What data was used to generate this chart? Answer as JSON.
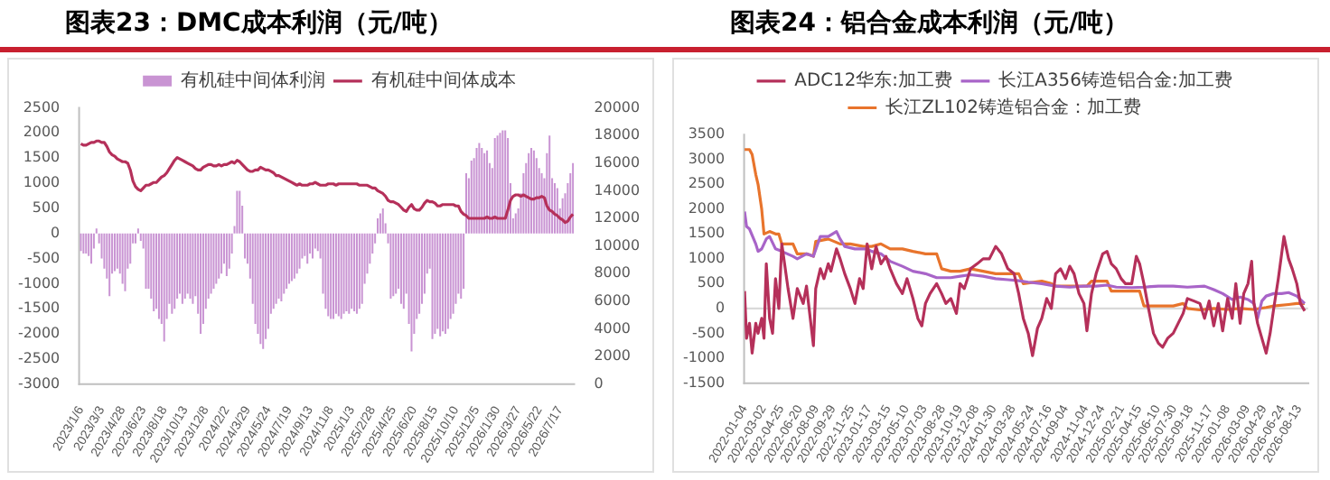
{
  "chart_data": [
    {
      "type": "bar",
      "title": "图表23：DMC成本利润（元/吨）",
      "categories": [
        "2023/1/6",
        null,
        null,
        null,
        null,
        null,
        null,
        null,
        "2023/3/3",
        null,
        null,
        null,
        null,
        null,
        null,
        null,
        "2023/4/28",
        null,
        null,
        null,
        null,
        null,
        null,
        null,
        "2023/6/23",
        null,
        null,
        null,
        null,
        null,
        null,
        null,
        "2023/8/18",
        null,
        null,
        null,
        null,
        null,
        null,
        null,
        "2023/10/13",
        null,
        null,
        null,
        null,
        null,
        null,
        null,
        "2023/12/8",
        null,
        null,
        null,
        null,
        null,
        null,
        null,
        "2024/2/2",
        null,
        null,
        null,
        null,
        null,
        null,
        null,
        "2024/3/29",
        null,
        null,
        null,
        null,
        null,
        null,
        null,
        "2024/5/24",
        null,
        null,
        null,
        null,
        null,
        null,
        null,
        "2024/7/19",
        null,
        null,
        null,
        null,
        null,
        null,
        null,
        "2024/9/13",
        null,
        null,
        null,
        null,
        null,
        null,
        null,
        "2024/11/8",
        null,
        null,
        null,
        null,
        null,
        null,
        null,
        "2025/1/3",
        null,
        null,
        null,
        null,
        null,
        null,
        null,
        "2025/2/28",
        null,
        null,
        null,
        null,
        null,
        null,
        null,
        "2025/4/25",
        null,
        null,
        null,
        null,
        null,
        null,
        null,
        "2025/6/20",
        null,
        null,
        null,
        null,
        null,
        null,
        null,
        "2025/8/15",
        null,
        null,
        null,
        null,
        null,
        null,
        null,
        "2025/10/10",
        null,
        null,
        null,
        null,
        null,
        null,
        null,
        "2025/12/5",
        null,
        null,
        null,
        null,
        null,
        null,
        null,
        "2026/1/30",
        null,
        null,
        null,
        null,
        null,
        null,
        null,
        "2026/3/27",
        null,
        null,
        null,
        null,
        null,
        null,
        null,
        "2026/5/22",
        null,
        null,
        null,
        null,
        null,
        null,
        null,
        "2026/7/17",
        null,
        null,
        null,
        null,
        null
      ],
      "ylim": [
        -3000,
        2500
      ],
      "yticks": [
        -3000,
        -2500,
        -2000,
        -1500,
        -1000,
        -500,
        0,
        500,
        1000,
        1500,
        2000,
        2500
      ],
      "y2lim": [
        0,
        20000
      ],
      "y2ticks": [
        0,
        2000,
        4000,
        6000,
        8000,
        10000,
        12000,
        14000,
        16000,
        18000,
        20000
      ],
      "legend": "top",
      "marker": "none",
      "series": [
        {
          "name": "有机硅中间体利润",
          "type": "bar",
          "color": "#c994d3",
          "values": [
            -350,
            -400,
            -400,
            -450,
            -600,
            -300,
            100,
            -200,
            -500,
            -700,
            -900,
            -1250,
            -800,
            -750,
            -700,
            -800,
            -1000,
            -1150,
            -700,
            -600,
            -200,
            -200,
            100,
            -150,
            -300,
            -1100,
            -1100,
            -1300,
            -1550,
            -1500,
            -1700,
            -1800,
            -2150,
            -1700,
            -1400,
            -1600,
            -1500,
            -1300,
            -1200,
            -1400,
            -1300,
            -1200,
            -1300,
            -1400,
            -1250,
            -1600,
            -2000,
            -1800,
            -1500,
            -1300,
            -1200,
            -1100,
            -1000,
            -900,
            -800,
            -600,
            -850,
            -700,
            -400,
            150,
            850,
            850,
            550,
            -500,
            -600,
            -900,
            -1400,
            -1800,
            -2000,
            -2200,
            -2300,
            -2100,
            -1900,
            -1600,
            -1500,
            -1400,
            -1300,
            -1350,
            -1200,
            -1100,
            -1000,
            -950,
            -900,
            -800,
            -700,
            -500,
            -450,
            -600,
            -400,
            -500,
            -300,
            -350,
            -500,
            -1200,
            -1500,
            -1650,
            -1700,
            -1700,
            -1600,
            -1650,
            -1700,
            -1600,
            -1550,
            -1600,
            -1500,
            -1550,
            -1600,
            -1500,
            -1400,
            -1000,
            -800,
            -600,
            -400,
            -200,
            300,
            400,
            500,
            200,
            -200,
            -1300,
            -1250,
            -1200,
            -1100,
            -1400,
            -1500,
            -1200,
            -1800,
            -2350,
            -2000,
            -1700,
            -1600,
            -1400,
            -1200,
            -800,
            -700,
            -2100,
            -2000,
            -1900,
            -2050,
            -1950,
            -2000,
            -1900,
            -1700,
            -1600,
            -1400,
            -1200,
            -1300,
            -1100,
            1200,
            1100,
            1450,
            1500,
            1700,
            1800,
            1700,
            1600,
            1650,
            1400,
            1300,
            1900,
            1950,
            2000,
            2050,
            2050,
            1900,
            1000,
            300,
            400,
            500,
            800,
            1200,
            1400,
            1600,
            1700,
            1650,
            1500,
            1300,
            1200,
            1100,
            1600,
            1950,
            1100,
            1000,
            900,
            500,
            700,
            800,
            1000,
            1200,
            1400
          ]
        },
        {
          "name": "有机硅中间体成本",
          "type": "line",
          "axis": "y2",
          "color": "#b5305a",
          "values": [
            17400,
            17300,
            17300,
            17400,
            17500,
            17500,
            17600,
            17600,
            17500,
            17500,
            17200,
            16800,
            16600,
            16500,
            16300,
            16200,
            16100,
            16100,
            16000,
            15500,
            14700,
            14300,
            14100,
            14000,
            14200,
            14400,
            14400,
            14500,
            14600,
            14600,
            14800,
            15000,
            15100,
            15300,
            15600,
            15900,
            16200,
            16400,
            16300,
            16200,
            16100,
            16000,
            15900,
            15800,
            15600,
            15500,
            15500,
            15700,
            15800,
            15900,
            15900,
            15800,
            15800,
            15900,
            15800,
            15900,
            15900,
            16000,
            16100,
            16000,
            16200,
            16100,
            15900,
            15700,
            15500,
            15400,
            15400,
            15500,
            15500,
            15700,
            15600,
            15500,
            15500,
            15400,
            15300,
            15100,
            15100,
            15000,
            14900,
            14800,
            14700,
            14600,
            14500,
            14400,
            14500,
            14400,
            14400,
            14400,
            14500,
            14500,
            14600,
            14500,
            14400,
            14400,
            14400,
            14500,
            14500,
            14500,
            14400,
            14500,
            14500,
            14500,
            14500,
            14500,
            14500,
            14500,
            14500,
            14400,
            14400,
            14400,
            14400,
            14300,
            14200,
            14200,
            14000,
            13900,
            13800,
            13600,
            13300,
            13200,
            13200,
            13100,
            13000,
            12800,
            12600,
            12500,
            12800,
            13000,
            12700,
            12600,
            12600,
            12800,
            13100,
            13300,
            13200,
            13200,
            13100,
            12900,
            12900,
            13000,
            13000,
            13000,
            13000,
            13000,
            12900,
            12900,
            12500,
            12300,
            12200,
            12000,
            12000,
            12000,
            12000,
            12000,
            12000,
            12000,
            12100,
            12000,
            12000,
            12100,
            12000,
            12000,
            12000,
            12000,
            12600,
            13300,
            13600,
            13700,
            13700,
            13600,
            13700,
            13600,
            13500,
            13400,
            13400,
            13500,
            13500,
            13600,
            13500,
            12900,
            12600,
            12500,
            12300,
            12200,
            12000,
            11900,
            11700,
            11800,
            12100,
            12300
          ]
        }
      ]
    },
    {
      "type": "line",
      "title": "图表24：铝合金成本利润（元/吨）",
      "xlim": [
        "2022-01-04",
        "2026-09-10"
      ],
      "xticks": [
        "2022-01-04",
        "2022-03-02",
        "2022-04-25",
        "2022-06-20",
        "2022-08-09",
        "2022-09-29",
        "2022-11-25",
        "2023-01-17",
        "2023-03-15",
        "2023-05-10",
        "2023-07-03",
        "2023-08-28",
        "2023-10-19",
        "2023-12-08",
        "2024-01-30",
        "2024-03-28",
        "2024-05-24",
        "2024-07-16",
        "2024-09-04",
        "2024-11-04",
        "2024-12-24",
        "2025-02-21",
        "2025-04-15",
        "2025-06-10",
        "2025-07-30",
        "2025-09-18",
        "2025-11-17",
        "2026-01-08",
        "2026-03-09",
        "2026-04-29",
        "2026-06-24",
        "2026-08-13"
      ],
      "ylim": [
        -1500,
        3500
      ],
      "yticks": [
        -1500,
        -1000,
        -500,
        0,
        500,
        1000,
        1500,
        2000,
        2500,
        3000,
        3500
      ],
      "legend": "top",
      "marker": "none",
      "ref_lines": [
        {
          "axis": "y",
          "value": 0,
          "color": "#d9d9d9"
        }
      ],
      "series": [
        {
          "name": "ADC12华东:加工费",
          "color": "#b5305a",
          "x": [
            "2022-01-04",
            "2022-01-10",
            "2022-01-19",
            "2022-01-27",
            "2022-02-07",
            "2022-02-14",
            "2022-02-25",
            "2022-03-04",
            "2022-03-11",
            "2022-03-21",
            "2022-03-30",
            "2022-04-08",
            "2022-04-18",
            "2022-04-27",
            "2022-05-16",
            "2022-05-31",
            "2022-06-13",
            "2022-07-01",
            "2022-07-11",
            "2022-08-01",
            "2022-08-08",
            "2022-08-22",
            "2022-09-02",
            "2022-09-15",
            "2022-09-23",
            "2022-10-10",
            "2022-10-21",
            "2022-11-04",
            "2022-11-21",
            "2022-12-05",
            "2022-12-19",
            "2022-12-30",
            "2023-01-11",
            "2023-01-25",
            "2023-02-07",
            "2023-02-22",
            "2023-03-09",
            "2023-03-22",
            "2023-04-10",
            "2023-04-28",
            "2023-05-12",
            "2023-05-30",
            "2023-06-14",
            "2023-06-26",
            "2023-07-07",
            "2023-07-21",
            "2023-08-10",
            "2023-08-25",
            "2023-09-07",
            "2023-09-22",
            "2023-10-09",
            "2023-10-20",
            "2023-11-02",
            "2023-11-21",
            "2023-12-11",
            "2023-12-29",
            "2024-01-17",
            "2024-02-05",
            "2024-02-23",
            "2024-03-13",
            "2024-04-01",
            "2024-04-15",
            "2024-04-29",
            "2024-05-14",
            "2024-05-27",
            "2024-06-11",
            "2024-06-24",
            "2024-07-09",
            "2024-07-23",
            "2024-08-05",
            "2024-08-20",
            "2024-09-04",
            "2024-09-17",
            "2024-09-30",
            "2024-10-15",
            "2024-10-30",
            "2024-11-08",
            "2024-11-22",
            "2024-12-06",
            "2024-12-26",
            "2025-01-08",
            "2025-01-21",
            "2025-02-05",
            "2025-02-20",
            "2025-03-05",
            "2025-03-24",
            "2025-04-07",
            "2025-04-17",
            "2025-04-30",
            "2025-05-14",
            "2025-05-29",
            "2025-06-13",
            "2025-06-26",
            "2025-07-11",
            "2025-07-28",
            "2025-08-12",
            "2025-08-27",
            "2025-09-09",
            "2025-09-29",
            "2025-10-17",
            "2025-10-31",
            "2025-11-14",
            "2025-11-28",
            "2025-12-12",
            "2025-12-25",
            "2026-01-09",
            "2026-01-23",
            "2026-02-03",
            "2026-02-16",
            "2026-02-27",
            "2026-03-12",
            "2026-03-23",
            "2026-03-30",
            "2026-04-10",
            "2026-04-23",
            "2026-05-06",
            "2026-05-18",
            "2026-05-29",
            "2026-06-12",
            "2026-06-22",
            "2026-06-29",
            "2026-07-13",
            "2026-07-24",
            "2026-08-07",
            "2026-08-18",
            "2026-08-31"
          ],
          "values": [
            350,
            -600,
            -300,
            -900,
            -300,
            -500,
            -200,
            -600,
            900,
            -200,
            -500,
            600,
            0,
            1300,
            400,
            -200,
            400,
            100,
            450,
            -750,
            400,
            800,
            600,
            900,
            750,
            1200,
            1000,
            700,
            400,
            100,
            600,
            400,
            1300,
            800,
            1250,
            900,
            1050,
            800,
            500,
            300,
            600,
            200,
            -200,
            -350,
            100,
            300,
            500,
            300,
            100,
            200,
            -100,
            500,
            400,
            800,
            900,
            1000,
            1000,
            1250,
            1100,
            800,
            700,
            300,
            -200,
            -500,
            -950,
            -400,
            -200,
            200,
            0,
            700,
            800,
            600,
            850,
            700,
            300,
            100,
            -450,
            300,
            700,
            1100,
            1150,
            900,
            800,
            600,
            500,
            500,
            1050,
            900,
            500,
            0,
            -500,
            -700,
            -780,
            -600,
            -500,
            -300,
            -100,
            200,
            150,
            100,
            -200,
            150,
            -350,
            100,
            -450,
            200,
            -200,
            500,
            -300,
            300,
            500,
            950,
            100,
            -300,
            -600,
            -900,
            -500,
            0,
            600,
            1100,
            1450,
            1000,
            800,
            500,
            100,
            -50
          ]
        },
        {
          "name": "长江A356铸造铝合金:加工费",
          "color": "#a864c8",
          "x": [
            "2022-01-04",
            "2022-01-10",
            "2022-01-19",
            "2022-02-07",
            "2022-02-14",
            "2022-02-25",
            "2022-03-11",
            "2022-03-21",
            "2022-04-08",
            "2022-04-27",
            "2022-05-31",
            "2022-06-13",
            "2022-07-11",
            "2022-08-01",
            "2022-08-22",
            "2022-09-15",
            "2022-10-10",
            "2022-10-21",
            "2022-11-04",
            "2022-12-05",
            "2023-01-11",
            "2023-01-25",
            "2023-02-22",
            "2023-03-22",
            "2023-04-28",
            "2023-05-30",
            "2023-07-07",
            "2023-08-10",
            "2023-09-22",
            "2023-10-20",
            "2023-11-21",
            "2023-12-29",
            "2024-02-05",
            "2024-03-13",
            "2024-04-15",
            "2024-05-14",
            "2024-06-24",
            "2024-08-05",
            "2024-09-17",
            "2024-10-30",
            "2024-12-06",
            "2025-01-08",
            "2025-02-05",
            "2025-03-24",
            "2025-04-30",
            "2025-06-13",
            "2025-07-28",
            "2025-09-09",
            "2025-10-31",
            "2025-11-28",
            "2025-12-25",
            "2026-01-23",
            "2026-02-16",
            "2026-03-12",
            "2026-03-30",
            "2026-04-10",
            "2026-04-23",
            "2026-05-06",
            "2026-05-29",
            "2026-06-22",
            "2026-07-13",
            "2026-08-07",
            "2026-08-31"
          ],
          "values": [
            1950,
            1650,
            1600,
            1300,
            1150,
            1200,
            1400,
            1450,
            1200,
            1150,
            1050,
            1000,
            1100,
            1050,
            1450,
            1450,
            1550,
            1400,
            1250,
            1200,
            1200,
            1150,
            1100,
            950,
            850,
            750,
            700,
            620,
            620,
            650,
            680,
            650,
            600,
            580,
            560,
            530,
            500,
            450,
            430,
            450,
            450,
            470,
            430,
            420,
            430,
            450,
            450,
            430,
            450,
            380,
            300,
            180,
            230,
            180,
            100,
            -200,
            150,
            250,
            300,
            300,
            320,
            250,
            100
          ]
        },
        {
          "name": "长江ZL102铸造铝合金：加工费",
          "color": "#e8742c",
          "x": [
            "2022-01-04",
            "2022-01-19",
            "2022-01-27",
            "2022-02-07",
            "2022-02-14",
            "2022-02-25",
            "2022-03-04",
            "2022-03-21",
            "2022-04-08",
            "2022-04-18",
            "2022-04-27",
            "2022-05-31",
            "2022-06-13",
            "2022-07-11",
            "2022-08-01",
            "2022-08-08",
            "2022-09-15",
            "2022-10-21",
            "2022-11-21",
            "2022-12-30",
            "2023-01-25",
            "2023-02-22",
            "2023-03-22",
            "2023-04-28",
            "2023-05-30",
            "2023-07-07",
            "2023-08-10",
            "2023-08-25",
            "2023-09-22",
            "2023-10-20",
            "2023-11-21",
            "2023-12-29",
            "2024-02-05",
            "2024-04-15",
            "2024-04-29",
            "2024-06-24",
            "2024-07-23",
            "2024-08-05",
            "2024-09-17",
            "2024-11-08",
            "2024-11-22",
            "2025-01-08",
            "2025-01-21",
            "2025-03-05",
            "2025-04-17",
            "2025-04-30",
            "2025-06-13",
            "2025-07-28",
            "2025-08-27",
            "2025-09-09",
            "2025-10-17",
            "2025-11-28",
            "2026-01-09",
            "2026-02-16",
            "2026-03-30",
            "2026-05-06",
            "2026-05-29",
            "2026-07-13",
            "2026-08-07",
            "2026-08-31"
          ],
          "values": [
            3200,
            3200,
            3100,
            2700,
            2500,
            2000,
            1500,
            1550,
            1500,
            1500,
            1300,
            1300,
            1100,
            1100,
            1050,
            1350,
            1400,
            1300,
            1300,
            1250,
            1250,
            1300,
            1200,
            1200,
            1150,
            1100,
            1100,
            800,
            750,
            750,
            800,
            750,
            700,
            700,
            500,
            550,
            500,
            450,
            450,
            450,
            550,
            550,
            350,
            350,
            350,
            50,
            50,
            50,
            100,
            0,
            -30,
            0,
            -20,
            0,
            -20,
            20,
            50,
            80,
            100,
            100
          ]
        }
      ]
    }
  ]
}
